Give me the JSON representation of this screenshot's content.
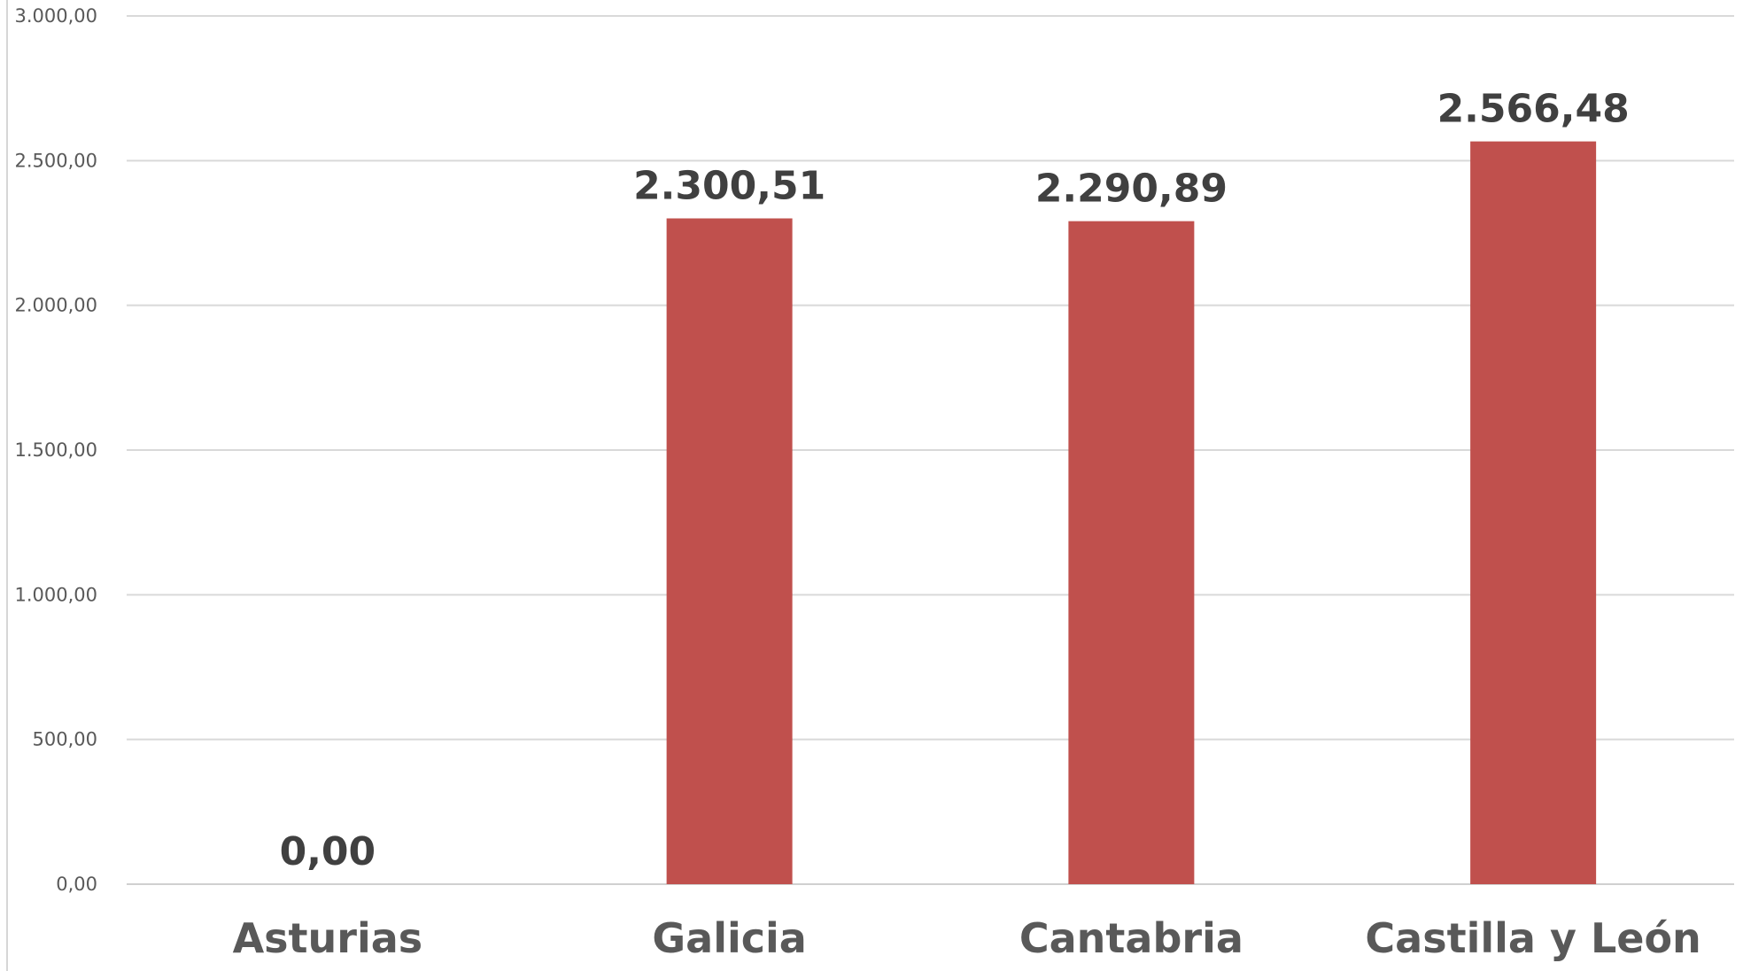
{
  "chart_data": {
    "type": "bar",
    "categories": [
      "Asturias",
      "Galicia",
      "Cantabria",
      "Castilla y León"
    ],
    "values": [
      0.0,
      2300.51,
      2290.89,
      2566.48
    ],
    "value_labels": [
      "0,00",
      "2.300,51",
      "2.290,89",
      "2.566,48"
    ],
    "y_ticks": [
      0,
      500,
      1000,
      1500,
      2000,
      2500,
      3000
    ],
    "y_tick_labels": [
      "0,00",
      "500,00",
      "1.000,00",
      "1.500,00",
      "2.000,00",
      "2.500,00",
      "3.000,00"
    ],
    "ylim": [
      0,
      3000
    ],
    "grid": true,
    "legend": "none",
    "colors": {
      "bar": "#C0504D",
      "grid": "#D9D9D9",
      "text": "#595959",
      "data_label": "#404040"
    }
  }
}
